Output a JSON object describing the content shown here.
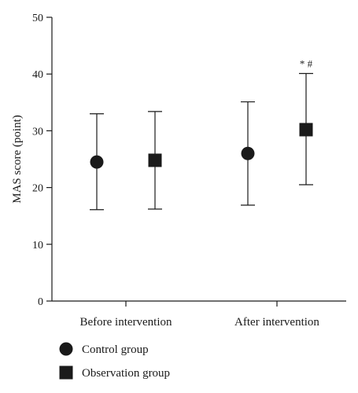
{
  "chart_data": {
    "type": "errorbar",
    "ylabel": "MAS score (point)",
    "ylim": [
      0,
      50
    ],
    "yticks": [
      0,
      10,
      20,
      30,
      40,
      50
    ],
    "categories": [
      "Before intervention",
      "After intervention"
    ],
    "series": [
      {
        "name": "Control group",
        "marker": "circle",
        "color": "#1a1a1a",
        "values": [
          24.5,
          26.0
        ],
        "lower": [
          16.1,
          16.9
        ],
        "upper": [
          33.0,
          35.1
        ]
      },
      {
        "name": "Observation group",
        "marker": "square",
        "color": "#1a1a1a",
        "values": [
          24.8,
          30.2
        ],
        "lower": [
          16.2,
          20.5
        ],
        "upper": [
          33.4,
          40.1
        ]
      }
    ],
    "annotations": [
      {
        "category": "After intervention",
        "series": "Observation group",
        "text": "* #"
      }
    ],
    "legend": "bottom-left",
    "grid": false
  }
}
